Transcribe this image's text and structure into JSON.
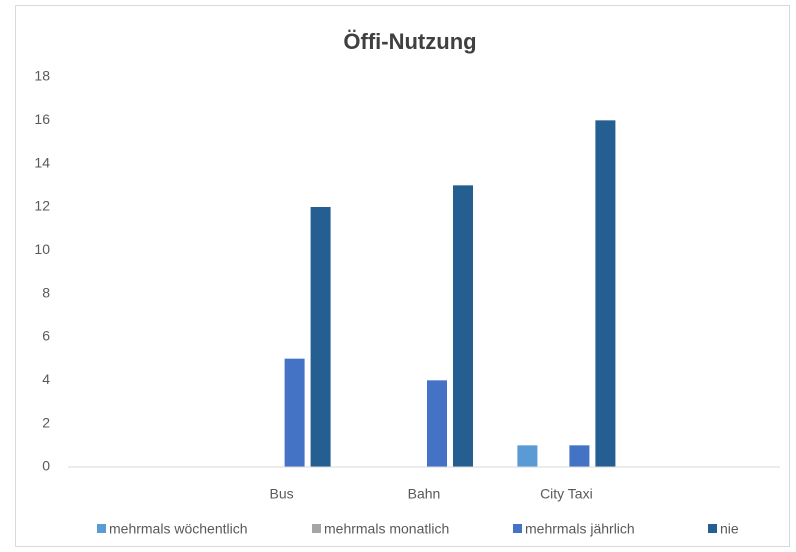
{
  "chart_data": {
    "type": "bar",
    "title": "Öffi-Nutzung",
    "categories": [
      null,
      "Bus",
      "Bahn",
      "City Taxi",
      null
    ],
    "series": [
      {
        "name": "mehrmals wöchentlich",
        "color": "#5b9bd5",
        "values": [
          null,
          0,
          0,
          1,
          null
        ]
      },
      {
        "name": "mehrmals monatlich",
        "color": "#a5a5a5",
        "values": [
          null,
          0,
          0,
          0,
          null
        ]
      },
      {
        "name": "mehrmals jährlich",
        "color": "#4472c4",
        "values": [
          null,
          5,
          4,
          1,
          null
        ]
      },
      {
        "name": "nie",
        "color": "#255e91",
        "values": [
          null,
          12,
          13,
          16,
          null
        ]
      }
    ],
    "ylim": [
      0,
      18
    ],
    "yticks": [
      0,
      2,
      4,
      6,
      8,
      10,
      12,
      14,
      16,
      18
    ],
    "grid": false,
    "legend": "bottom"
  }
}
